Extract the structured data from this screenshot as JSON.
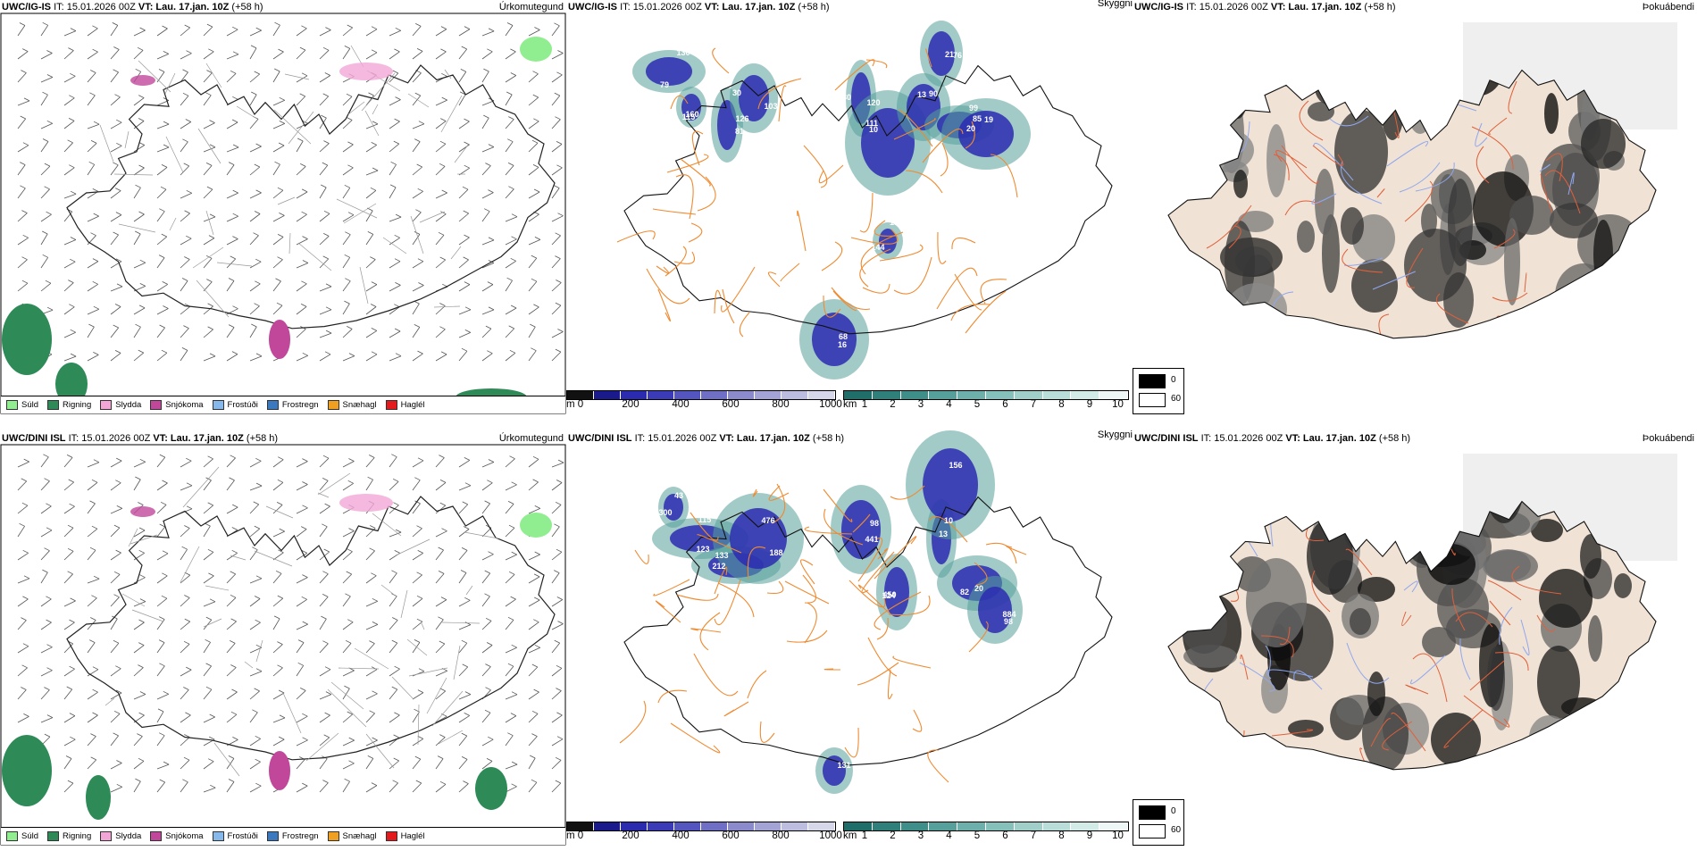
{
  "rows": [
    {
      "model": "UWC/IG-IS",
      "it_label": "IT: 15.01.2026 00Z",
      "vt_label": "VT: Lau. 17.jan. 10Z",
      "lead": "(+58 h)",
      "left_title": "Úrkomutegund",
      "mid_title": "Skyggni",
      "right_title": "Þokuábendi",
      "numbers": [
        "79",
        "160",
        "81",
        "30",
        "80",
        "111",
        "90",
        "99",
        "85",
        "76",
        "144",
        "68",
        "130",
        "115",
        "126",
        "103",
        "120",
        "10",
        "13",
        "20",
        "19",
        "21",
        "13",
        "16"
      ]
    },
    {
      "model": "UWC/DINI ISL",
      "it_label": "IT: 15.01.2026 00Z",
      "vt_label": "VT: Lau. 17.jan. 10Z",
      "lead": "(+58 h)",
      "left_title": "Úrkomutegund",
      "mid_title": "Skyggni",
      "right_title": "Þokuábendi",
      "numbers": [
        "43",
        "123",
        "133",
        "188",
        "98",
        "124",
        "13",
        "82",
        "884",
        "156",
        "131",
        "300",
        "115",
        "212",
        "476",
        "441",
        "450",
        "10",
        "20",
        "98"
      ]
    }
  ],
  "precip_legend": [
    {
      "label": "Súld",
      "color": "#90ee90"
    },
    {
      "label": "Rigning",
      "color": "#2e8b57"
    },
    {
      "label": "Slydda",
      "color": "#f2a6d6"
    },
    {
      "label": "Snjókoma",
      "color": "#c0479a"
    },
    {
      "label": "Frostúði",
      "color": "#87b8ec"
    },
    {
      "label": "Frostregn",
      "color": "#3a78c0"
    },
    {
      "label": "Snæhagl",
      "color": "#f0a020"
    },
    {
      "label": "Haglél",
      "color": "#e41a1c"
    }
  ],
  "height_scale": {
    "unit": "m",
    "ticks": [
      "0",
      "200",
      "400",
      "600",
      "800",
      "1000"
    ],
    "colors": [
      "#111111",
      "#1a1a8c",
      "#2b2bb0",
      "#3b3bb8",
      "#5555bf",
      "#6f6fc6",
      "#8a8acd",
      "#a3a3d6",
      "#bdbde0",
      "#d7d7ea"
    ]
  },
  "vis_scale": {
    "unit": "km",
    "ticks": [
      "1",
      "2",
      "3",
      "4",
      "5",
      "6",
      "7",
      "8",
      "9",
      "10"
    ],
    "colors": [
      "#206e6a",
      "#2f7f7b",
      "#3e8e8a",
      "#56a09b",
      "#6db0ab",
      "#86c0bb",
      "#a0cfca",
      "#b9ddd8",
      "#d3ebe7",
      "#eef7f5"
    ]
  },
  "fog_scale": {
    "labels": [
      "0",
      "60"
    ],
    "colors": [
      "#000000",
      "#ffffff"
    ]
  }
}
